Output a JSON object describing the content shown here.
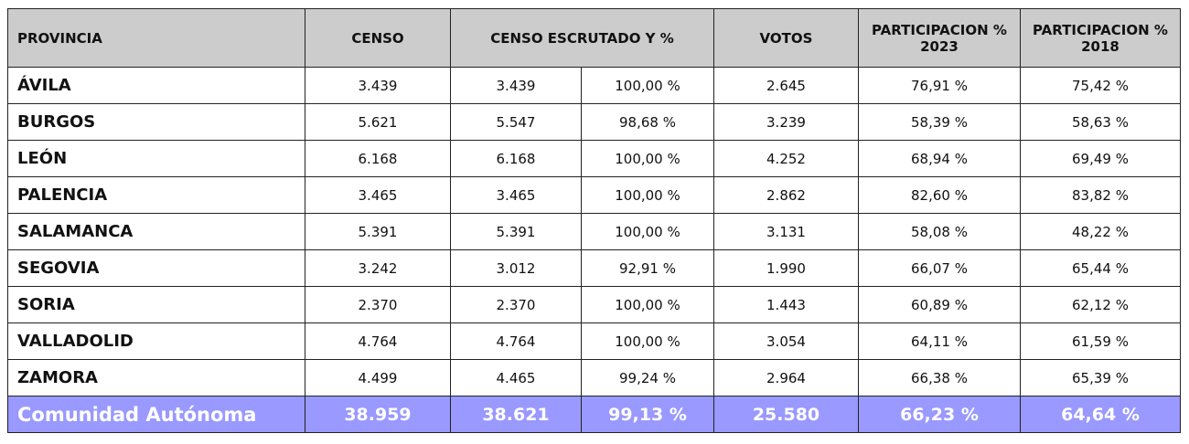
{
  "headers": {
    "provincia": "PROVINCIA",
    "censo": "CENSO",
    "escrutado": "CENSO ESCRUTADO  Y %",
    "votos": "VOTOS",
    "p2023": "PARTICIPACION % 2023",
    "p2018": "PARTICIPACION % 2018"
  },
  "rows": [
    {
      "provincia": "ÁVILA",
      "censo": "3.439",
      "escrutado": "3.439",
      "pct": "100,00 %",
      "votos": "2.645",
      "p2023": "76,91 %",
      "p2018": "75,42 %"
    },
    {
      "provincia": "BURGOS",
      "censo": "5.621",
      "escrutado": "5.547",
      "pct": "98,68 %",
      "votos": "3.239",
      "p2023": "58,39 %",
      "p2018": "58,63 %"
    },
    {
      "provincia": "LEÓN",
      "censo": "6.168",
      "escrutado": "6.168",
      "pct": "100,00 %",
      "votos": "4.252",
      "p2023": "68,94 %",
      "p2018": "69,49 %"
    },
    {
      "provincia": "PALENCIA",
      "censo": "3.465",
      "escrutado": "3.465",
      "pct": "100,00 %",
      "votos": "2.862",
      "p2023": "82,60 %",
      "p2018": "83,82 %"
    },
    {
      "provincia": "SALAMANCA",
      "censo": "5.391",
      "escrutado": "5.391",
      "pct": "100,00 %",
      "votos": "3.131",
      "p2023": "58,08 %",
      "p2018": "48,22 %"
    },
    {
      "provincia": "SEGOVIA",
      "censo": "3.242",
      "escrutado": "3.012",
      "pct": "92,91 %",
      "votos": "1.990",
      "p2023": "66,07 %",
      "p2018": "65,44 %"
    },
    {
      "provincia": "SORIA",
      "censo": "2.370",
      "escrutado": "2.370",
      "pct": "100,00 %",
      "votos": "1.443",
      "p2023": "60,89 %",
      "p2018": "62,12 %"
    },
    {
      "provincia": "VALLADOLID",
      "censo": "4.764",
      "escrutado": "4.764",
      "pct": "100,00 %",
      "votos": "3.054",
      "p2023": "64,11 %",
      "p2018": "61,59 %"
    },
    {
      "provincia": "ZAMORA",
      "censo": "4.499",
      "escrutado": "4.465",
      "pct": "99,24 %",
      "votos": "2.964",
      "p2023": "66,38 %",
      "p2018": "65,39 %"
    }
  ],
  "total": {
    "provincia": "Comunidad Autónoma",
    "censo": "38.959",
    "escrutado": "38.621",
    "pct": "99,13 %",
    "votos": "25.580",
    "p2023": "66,23 %",
    "p2018": "64,64 %"
  },
  "colors": {
    "header": "#cccccc",
    "total": "#9999ff"
  }
}
